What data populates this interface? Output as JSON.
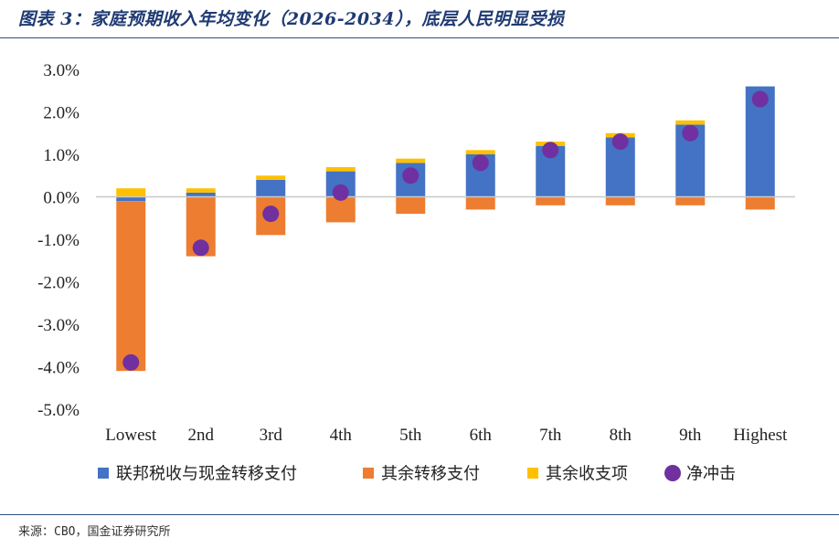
{
  "header": {
    "title": "图表 3：家庭预期收入年均变化（2026-2034），底层人民明显受损"
  },
  "footer": {
    "source": "来源：CBO，国金证券研究所"
  },
  "chart_data": {
    "type": "bar",
    "stacked": true,
    "categories": [
      "Lowest",
      "2nd",
      "3rd",
      "4th",
      "5th",
      "6th",
      "7th",
      "8th",
      "9th",
      "Highest"
    ],
    "series": [
      {
        "name": "联邦税收与现金转移支付",
        "color": "#4472c4",
        "kind": "bar",
        "values": [
          -0.1,
          0.1,
          0.4,
          0.6,
          0.8,
          1.0,
          1.2,
          1.4,
          1.7,
          2.6
        ]
      },
      {
        "name": "其余转移支付",
        "color": "#ed7d31",
        "kind": "bar",
        "values": [
          -4.0,
          -1.4,
          -0.9,
          -0.6,
          -0.4,
          -0.3,
          -0.2,
          -0.2,
          -0.2,
          -0.3
        ]
      },
      {
        "name": "其余收支项",
        "color": "#ffc000",
        "kind": "bar",
        "values": [
          0.2,
          0.1,
          0.1,
          0.1,
          0.1,
          0.1,
          0.1,
          0.1,
          0.1,
          0.0
        ]
      },
      {
        "name": "净冲击",
        "color": "#7030a0",
        "kind": "marker",
        "values": [
          -3.9,
          -1.2,
          -0.4,
          0.1,
          0.5,
          0.8,
          1.1,
          1.3,
          1.5,
          2.3
        ]
      }
    ],
    "ylim": [
      -5.0,
      3.0
    ],
    "yticks": [
      3.0,
      2.0,
      1.0,
      0.0,
      -1.0,
      -2.0,
      -3.0,
      -4.0,
      -5.0
    ],
    "ytick_labels": [
      "3.0%",
      "2.0%",
      "1.0%",
      "0.0%",
      "-1.0%",
      "-2.0%",
      "-3.0%",
      "-4.0%",
      "-5.0%"
    ],
    "legend_position": "bottom"
  }
}
